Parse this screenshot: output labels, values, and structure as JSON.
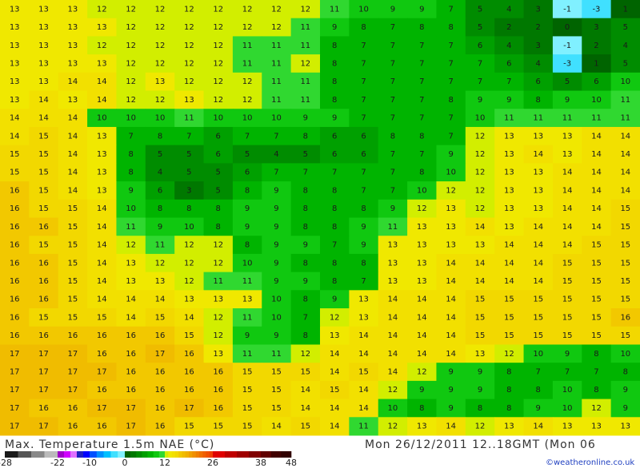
{
  "footer": {
    "title": "Max. Temperature 1.5m NAE (°C)",
    "date": "Mon 26/12/2011 12..18GMT  (Mon 06",
    "credit": "©weatheronline.co.uk"
  },
  "colorbar": {
    "labels": [
      -28,
      -22,
      -10,
      0,
      12,
      26,
      38,
      48
    ],
    "segments": [
      [
        "#1a1a1a",
        "#555555",
        "#888888",
        "#bbbbbb"
      ],
      [
        "#a000c8",
        "#d000ff",
        "#e070ff",
        "#2020c0",
        "#0000ff"
      ],
      [
        "#0050ff",
        "#0090ff",
        "#00c0ff",
        "#40e0ff",
        "#80f0ff"
      ],
      [
        "#006400",
        "#007800",
        "#008c00",
        "#00a000",
        "#00b400",
        "#10c810",
        "#30d830"
      ],
      [
        "#d2ee00",
        "#f0e800",
        "#f2e000",
        "#f2d800",
        "#f2c800",
        "#f0bc00",
        "#f0b000",
        "#f0a000",
        "#f09000",
        "#f08000",
        "#f07000",
        "#f06000",
        "#f05000",
        "#f04000"
      ],
      [
        "#e00000",
        "#c00000",
        "#a00000",
        "#800000"
      ],
      [
        "#600000",
        "#400000",
        "#300000"
      ]
    ]
  },
  "map": {
    "values": [
      [
        13,
        13,
        13,
        12,
        12,
        12,
        12,
        12,
        12,
        12,
        12,
        11,
        10,
        9,
        9,
        7,
        5,
        4,
        3,
        -1,
        -3,
        1
      ],
      [
        13,
        13,
        13,
        13,
        12,
        12,
        12,
        12,
        12,
        12,
        11,
        9,
        8,
        7,
        8,
        8,
        5,
        2,
        2,
        0,
        3,
        5
      ],
      [
        13,
        13,
        13,
        12,
        12,
        12,
        12,
        12,
        11,
        11,
        11,
        8,
        7,
        7,
        7,
        7,
        6,
        4,
        3,
        -1,
        2,
        4
      ],
      [
        13,
        13,
        13,
        13,
        12,
        12,
        12,
        12,
        11,
        11,
        12,
        8,
        7,
        7,
        7,
        7,
        7,
        6,
        4,
        -3,
        1,
        5
      ],
      [
        13,
        13,
        14,
        14,
        12,
        13,
        12,
        12,
        12,
        11,
        11,
        8,
        7,
        7,
        7,
        7,
        7,
        7,
        6,
        5,
        6,
        10
      ],
      [
        13,
        14,
        13,
        14,
        12,
        12,
        13,
        12,
        12,
        11,
        11,
        8,
        7,
        7,
        7,
        8,
        9,
        9,
        8,
        9,
        10,
        11
      ],
      [
        14,
        14,
        14,
        10,
        10,
        10,
        11,
        10,
        10,
        10,
        9,
        9,
        7,
        7,
        7,
        7,
        10,
        11,
        11,
        11,
        11,
        11
      ],
      [
        14,
        15,
        14,
        13,
        7,
        8,
        7,
        6,
        7,
        7,
        8,
        6,
        6,
        8,
        8,
        7,
        12,
        13,
        13,
        13,
        14,
        14
      ],
      [
        15,
        15,
        14,
        13,
        8,
        5,
        5,
        6,
        5,
        4,
        5,
        6,
        6,
        7,
        7,
        9,
        12,
        13,
        14,
        13,
        14,
        14
      ],
      [
        15,
        15,
        14,
        13,
        8,
        4,
        5,
        5,
        6,
        7,
        7,
        7,
        7,
        7,
        8,
        10,
        12,
        13,
        13,
        14,
        14,
        14
      ],
      [
        16,
        15,
        14,
        13,
        9,
        6,
        3,
        5,
        8,
        9,
        8,
        8,
        7,
        7,
        10,
        12,
        12,
        13,
        13,
        14,
        14,
        14
      ],
      [
        16,
        15,
        15,
        14,
        10,
        8,
        8,
        8,
        9,
        9,
        8,
        8,
        8,
        9,
        12,
        13,
        12,
        13,
        13,
        14,
        14,
        15
      ],
      [
        16,
        16,
        15,
        14,
        11,
        9,
        10,
        8,
        9,
        9,
        8,
        8,
        9,
        11,
        13,
        13,
        14,
        13,
        14,
        14,
        14,
        15
      ],
      [
        16,
        15,
        15,
        14,
        12,
        11,
        12,
        12,
        8,
        9,
        9,
        7,
        9,
        13,
        13,
        13,
        13,
        14,
        14,
        14,
        15,
        15
      ],
      [
        16,
        16,
        15,
        14,
        13,
        12,
        12,
        12,
        10,
        9,
        8,
        8,
        8,
        13,
        13,
        14,
        14,
        14,
        14,
        15,
        15,
        15
      ],
      [
        16,
        16,
        15,
        14,
        13,
        13,
        12,
        11,
        11,
        9,
        9,
        8,
        7,
        13,
        13,
        14,
        14,
        14,
        14,
        15,
        15,
        15
      ],
      [
        16,
        16,
        15,
        14,
        14,
        14,
        13,
        13,
        13,
        10,
        8,
        9,
        13,
        14,
        14,
        14,
        15,
        15,
        15,
        15,
        15,
        15
      ],
      [
        16,
        15,
        15,
        15,
        14,
        15,
        14,
        12,
        11,
        10,
        7,
        12,
        13,
        14,
        14,
        14,
        15,
        15,
        15,
        15,
        15,
        16
      ],
      [
        16,
        16,
        16,
        16,
        16,
        16,
        15,
        12,
        9,
        9,
        8,
        13,
        14,
        14,
        14,
        14,
        15,
        15,
        15,
        15,
        15,
        15
      ],
      [
        17,
        17,
        17,
        16,
        16,
        17,
        16,
        13,
        11,
        11,
        12,
        14,
        14,
        14,
        14,
        14,
        13,
        12,
        10,
        9,
        8,
        10
      ],
      [
        17,
        17,
        17,
        17,
        16,
        16,
        16,
        16,
        15,
        15,
        15,
        14,
        15,
        14,
        12,
        9,
        9,
        8,
        7,
        7,
        7,
        8
      ],
      [
        17,
        17,
        17,
        16,
        16,
        16,
        16,
        16,
        15,
        15,
        14,
        15,
        14,
        12,
        9,
        9,
        9,
        8,
        8,
        10,
        8,
        9
      ],
      [
        17,
        16,
        16,
        17,
        17,
        16,
        17,
        16,
        15,
        15,
        14,
        14,
        14,
        10,
        8,
        9,
        8,
        8,
        9,
        10,
        12,
        9
      ],
      [
        17,
        17,
        16,
        16,
        17,
        16,
        15,
        15,
        15,
        14,
        15,
        14,
        11,
        12,
        13,
        14,
        12,
        13,
        14,
        13,
        13,
        13
      ]
    ]
  }
}
